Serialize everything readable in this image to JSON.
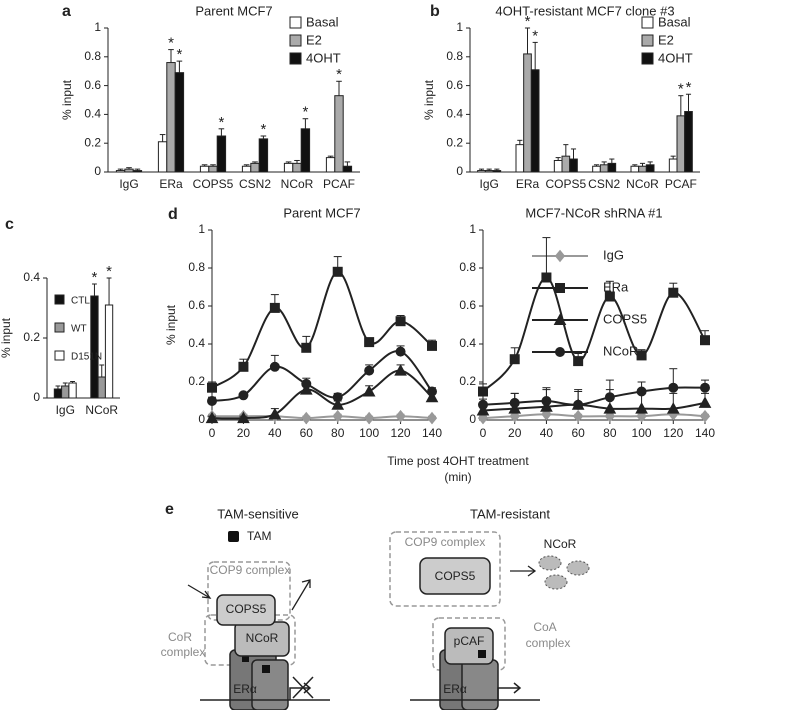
{
  "chart_data": [
    {
      "panel": "a",
      "type": "bar",
      "title": "Parent MCF7",
      "ylabel": "% input",
      "categories": [
        "IgG",
        "ERa",
        "COPS5",
        "CSN2",
        "NCoR",
        "PCAF"
      ],
      "ylim": [
        0,
        1
      ],
      "yticks": [
        0,
        0.2,
        0.4,
        0.6,
        0.8,
        1
      ],
      "series": [
        {
          "name": "Basal",
          "color": "#ffffff",
          "values": [
            0.01,
            0.21,
            0.04,
            0.04,
            0.06,
            0.1
          ],
          "errors": [
            0.01,
            0.05,
            0.01,
            0.01,
            0.01,
            0.01
          ],
          "stars": [
            null,
            null,
            null,
            null,
            null,
            null
          ]
        },
        {
          "name": "E2",
          "color": "#aaaaaa",
          "values": [
            0.02,
            0.76,
            0.04,
            0.06,
            0.06,
            0.53
          ],
          "errors": [
            0.01,
            0.09,
            0.01,
            0.01,
            0.02,
            0.1
          ],
          "stars": [
            null,
            "*",
            null,
            null,
            null,
            "*"
          ]
        },
        {
          "name": "4OHT",
          "color": "#111111",
          "values": [
            0.01,
            0.69,
            0.25,
            0.23,
            0.3,
            0.04
          ],
          "errors": [
            0.01,
            0.08,
            0.05,
            0.02,
            0.07,
            0.03
          ],
          "stars": [
            null,
            "*",
            "*",
            "*",
            "*",
            null
          ]
        }
      ]
    },
    {
      "panel": "b",
      "type": "bar",
      "title": "4OHT-resistant MCF7 clone #3",
      "ylabel": "% input",
      "categories": [
        "IgG",
        "ERa",
        "COPS5",
        "CSN2",
        "NCoR",
        "PCAF"
      ],
      "ylim": [
        0,
        1
      ],
      "yticks": [
        0,
        0.2,
        0.4,
        0.6,
        0.8,
        1
      ],
      "series": [
        {
          "name": "Basal",
          "color": "#ffffff",
          "values": [
            0.01,
            0.19,
            0.08,
            0.04,
            0.04,
            0.09
          ],
          "errors": [
            0.01,
            0.03,
            0.02,
            0.01,
            0.01,
            0.02
          ],
          "stars": [
            null,
            null,
            null,
            null,
            null,
            null
          ]
        },
        {
          "name": "E2",
          "color": "#aaaaaa",
          "values": [
            0.01,
            0.82,
            0.11,
            0.05,
            0.04,
            0.39
          ],
          "errors": [
            0.01,
            0.18,
            0.08,
            0.02,
            0.02,
            0.14
          ],
          "stars": [
            null,
            "*",
            null,
            null,
            null,
            "*"
          ]
        },
        {
          "name": "4OHT",
          "color": "#111111",
          "values": [
            0.01,
            0.71,
            0.09,
            0.06,
            0.05,
            0.42
          ],
          "errors": [
            0.01,
            0.19,
            0.07,
            0.03,
            0.02,
            0.12
          ],
          "stars": [
            null,
            "*",
            null,
            null,
            null,
            "*"
          ]
        }
      ]
    },
    {
      "panel": "c",
      "type": "bar",
      "ylabel": "% input",
      "categories": [
        "IgG",
        "NCoR"
      ],
      "ylim": [
        0,
        0.4
      ],
      "yticks": [
        0,
        0.2,
        0.4
      ],
      "series": [
        {
          "name": "CTL",
          "color": "#111111",
          "values": [
            0.03,
            0.34
          ],
          "errors": [
            0.01,
            0.04
          ],
          "stars": [
            null,
            "*"
          ]
        },
        {
          "name": "WT",
          "color": "#999999",
          "values": [
            0.04,
            0.07
          ],
          "errors": [
            0.01,
            0.04
          ],
          "stars": [
            null,
            null
          ]
        },
        {
          "name": "D151N",
          "color": "#ffffff",
          "values": [
            0.05,
            0.31
          ],
          "errors": [
            0.005,
            0.09
          ],
          "stars": [
            null,
            "*"
          ]
        }
      ]
    },
    {
      "panel": "d",
      "type": "line",
      "title": "Parent MCF7",
      "ylabel": "% input",
      "xlabel": [
        "Time post 4OHT treatment",
        "(min)"
      ],
      "x": [
        0,
        20,
        40,
        60,
        80,
        100,
        120,
        140
      ],
      "xlim": [
        0,
        140
      ],
      "xticks": [
        0,
        20,
        40,
        60,
        80,
        100,
        120,
        140
      ],
      "ylim": [
        0,
        1
      ],
      "yticks": [
        0,
        0.2,
        0.4,
        0.6,
        0.8,
        1
      ],
      "series": [
        {
          "name": "IgG",
          "color": "#999999",
          "marker": "diamond",
          "values": [
            0.02,
            0.02,
            0.02,
            0.01,
            0.02,
            0.01,
            0.02,
            0.01
          ],
          "errors": [
            0.01,
            0.01,
            0.01,
            0.01,
            0.01,
            0.01,
            0.01,
            0.01
          ]
        },
        {
          "name": "ERa",
          "color": "#222222",
          "marker": "square",
          "values": [
            0.17,
            0.28,
            0.59,
            0.38,
            0.78,
            0.41,
            0.52,
            0.39
          ],
          "errors": [
            0.03,
            0.04,
            0.07,
            0.06,
            0.08,
            0.02,
            0.03,
            0.03
          ]
        },
        {
          "name": "COPS5",
          "color": "#222222",
          "marker": "triangle",
          "values": [
            0.01,
            0.01,
            0.03,
            0.16,
            0.08,
            0.15,
            0.26,
            0.12
          ],
          "errors": [
            0.01,
            0.01,
            0.03,
            0.03,
            0.02,
            0.03,
            0.03,
            0.02
          ]
        },
        {
          "name": "NCoR",
          "color": "#222222",
          "marker": "circle",
          "values": [
            0.1,
            0.13,
            0.28,
            0.19,
            0.12,
            0.26,
            0.36,
            0.15
          ],
          "errors": [
            0.02,
            0.01,
            0.06,
            0.03,
            0.02,
            0.03,
            0.03,
            0.02
          ]
        }
      ]
    },
    {
      "type": "line",
      "title": "MCF7-NCoR shRNA #1",
      "x": [
        0,
        20,
        40,
        60,
        80,
        100,
        120,
        140
      ],
      "xlim": [
        0,
        140
      ],
      "xticks": [
        0,
        20,
        40,
        60,
        80,
        100,
        120,
        140
      ],
      "ylim": [
        0,
        1
      ],
      "yticks": [
        0,
        0.2,
        0.4,
        0.6,
        0.8,
        1
      ],
      "series": [
        {
          "color": "#999999",
          "marker": "diamond",
          "values": [
            0.01,
            0.02,
            0.03,
            0.02,
            0.02,
            0.02,
            0.03,
            0.02
          ],
          "errors": [
            0.01,
            0.01,
            0.01,
            0.01,
            0.01,
            0.01,
            0.01,
            0.01
          ]
        },
        {
          "color": "#222222",
          "marker": "square",
          "values": [
            0.15,
            0.32,
            0.75,
            0.31,
            0.65,
            0.34,
            0.67,
            0.42
          ],
          "errors": [
            0.04,
            0.06,
            0.21,
            0.04,
            0.08,
            0.03,
            0.05,
            0.05
          ]
        },
        {
          "color": "#222222",
          "marker": "triangle",
          "values": [
            0.05,
            0.06,
            0.07,
            0.08,
            0.06,
            0.06,
            0.06,
            0.09
          ],
          "errors": [
            0.03,
            0.08,
            0.1,
            0.08,
            0.1,
            0.09,
            0.08,
            0.05
          ]
        },
        {
          "color": "#222222",
          "marker": "circle",
          "values": [
            0.08,
            0.09,
            0.1,
            0.08,
            0.12,
            0.15,
            0.17,
            0.17
          ],
          "errors": [
            0.03,
            0.05,
            0.06,
            0.07,
            0.09,
            0.05,
            0.1,
            0.04
          ]
        }
      ]
    }
  ],
  "diagram": {
    "panel": "e",
    "left": {
      "title": "TAM-sensitive",
      "legend": "TAM",
      "cop9": "COP9 complex",
      "cops5": "COPS5",
      "ncor": "NCoR",
      "cor": [
        "CoR",
        "complex"
      ],
      "er": "ERα"
    },
    "right": {
      "title": "TAM-resistant",
      "cop9": "COP9 complex",
      "cops5": "COPS5",
      "ncor": "NCoR",
      "pcaf": "pCAF",
      "coa": [
        "CoA",
        "complex"
      ],
      "er": "ERα"
    }
  }
}
